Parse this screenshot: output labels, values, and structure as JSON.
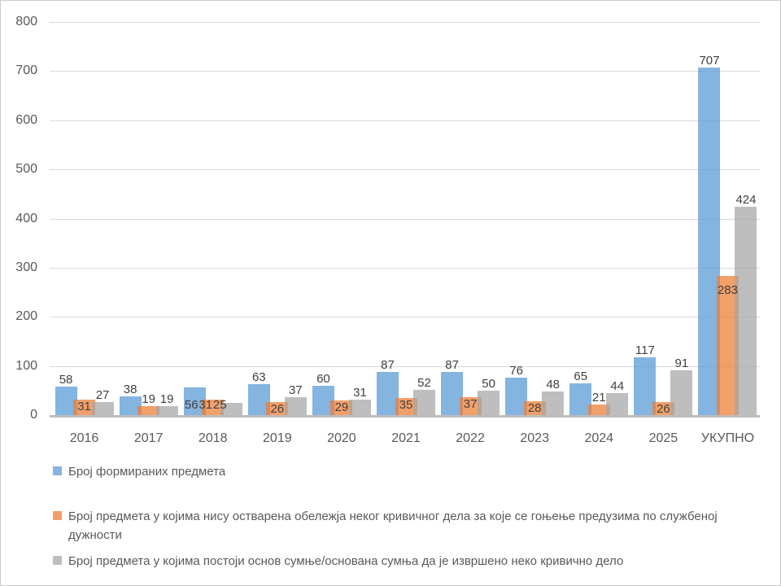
{
  "colors": {
    "blue": {
      "hex": "#5B9BD5",
      "alpha": 0.75
    },
    "orange": {
      "hex": "#ED7D31",
      "alpha": 0.73
    },
    "gray": {
      "hex": "#A5A5A5",
      "alpha": 0.72
    },
    "gridline": "#D9D9D9",
    "axis_line": "#BDBDBD",
    "tick_text": "#595959",
    "data_label_text": "#404040",
    "border": "#CBCBCB"
  },
  "chart_data": {
    "type": "bar",
    "title": "",
    "xlabel": "",
    "ylabel": "",
    "categories": [
      "2016",
      "2017",
      "2018",
      "2019",
      "2020",
      "2021",
      "2022",
      "2023",
      "2024",
      "2025",
      "УКУПНО"
    ],
    "series": [
      {
        "name": "Број формираних предмета",
        "color_key": "blue",
        "values": [
          58,
          38,
          56,
          63,
          60,
          87,
          87,
          76,
          65,
          117,
          707
        ]
      },
      {
        "name": "Број предмета у којима нису остварена обележја неког кривичног дела за које се гоњење предузима по службеној дужности",
        "color_key": "orange",
        "values": [
          31,
          19,
          31,
          26,
          29,
          35,
          37,
          28,
          21,
          26,
          283
        ]
      },
      {
        "name": "Број предмета у којима постоји основ сумње/основана сумња да је извршено неко кривично дело",
        "color_key": "gray",
        "values": [
          27,
          19,
          25,
          37,
          31,
          52,
          50,
          48,
          44,
          91,
          424
        ]
      }
    ],
    "y_ticks": [
      0,
      100,
      200,
      300,
      400,
      500,
      600,
      700,
      800
    ],
    "ylim": [
      0,
      800
    ],
    "grid": true,
    "data_labels": true,
    "legend_position": "bottom"
  }
}
